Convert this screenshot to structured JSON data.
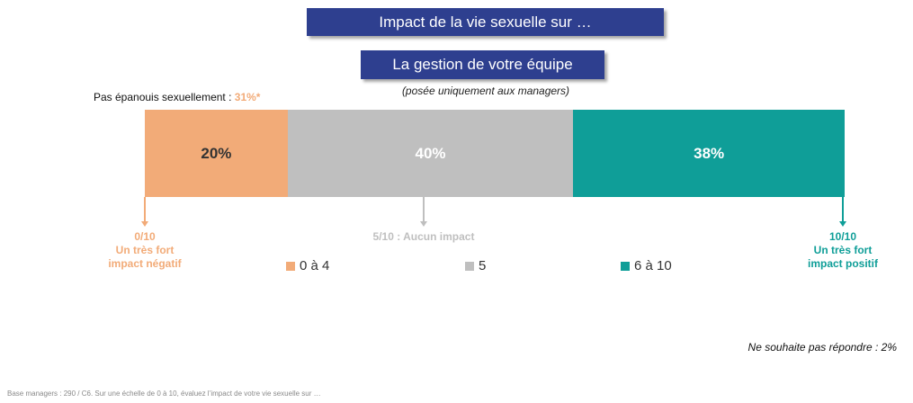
{
  "header": {
    "title": "Impact de la vie sexuelle sur …",
    "subtitle": "La gestion de votre équipe",
    "note": "(posée uniquement aux managers)"
  },
  "pre_label": {
    "text": "Pas épanouis sexuellement : ",
    "value": "31%*"
  },
  "colors": {
    "low": "#f2ab78",
    "mid": "#bfbfbf",
    "high": "#0f9e98",
    "low_text": "#333333",
    "mid_text": "#ffffff",
    "high_text": "#ffffff"
  },
  "chart_data": {
    "type": "bar",
    "orientation": "horizontal-stacked",
    "categories": [
      "0 à 4",
      "5",
      "6 à 10"
    ],
    "values": [
      20,
      40,
      38
    ],
    "labels": [
      "20%",
      "40%",
      "38%"
    ],
    "unit": "%",
    "legend": [
      "0 à 4",
      "5",
      "6 à 10"
    ],
    "legend_placement": "bottom",
    "scale_markers": [
      {
        "position": 0,
        "lines": [
          "0/10",
          "Un très fort",
          "impact négatif"
        ],
        "color": "#f2ab78"
      },
      {
        "position": 5,
        "lines": [
          "5/10 : Aucun impact"
        ],
        "color": "#bfbfbf"
      },
      {
        "position": 10,
        "lines": [
          "10/10",
          "Un très fort",
          "impact positif"
        ],
        "color": "#0f9e98"
      }
    ]
  },
  "no_answer": "Ne souhaite pas répondre : 2%",
  "footnote": "Base managers : 290 / C6. Sur une échelle de 0 à 10, évaluez l’impact de votre vie sexuelle sur …"
}
